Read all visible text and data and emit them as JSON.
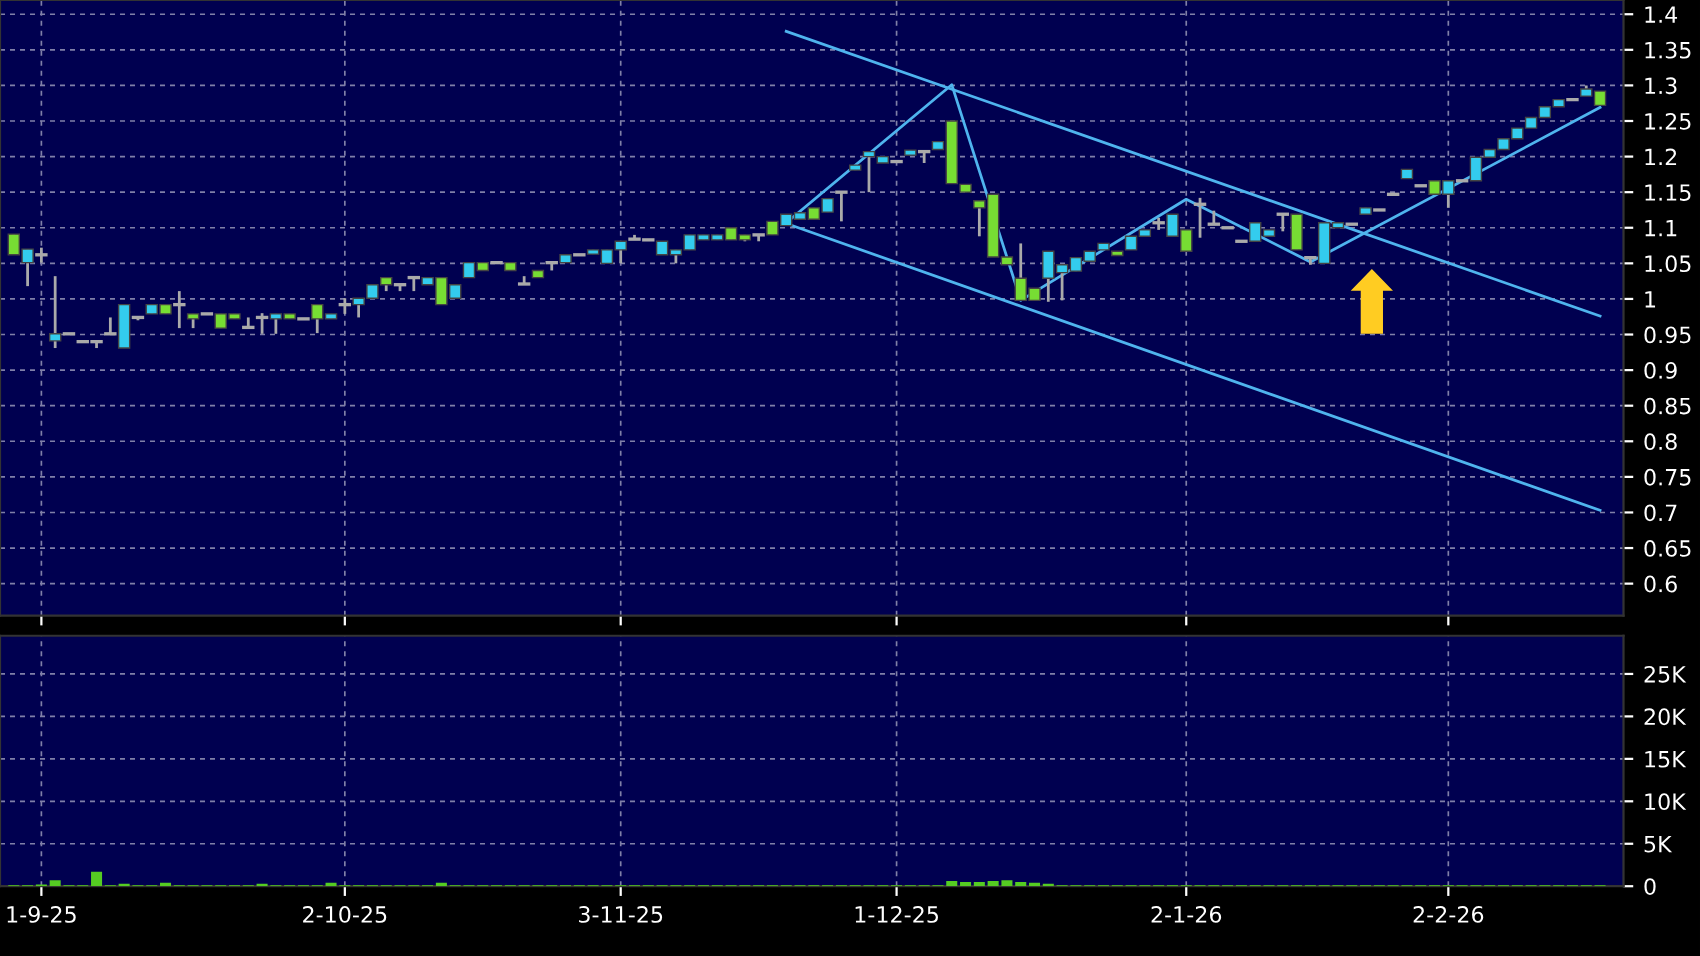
{
  "chart_data": [
    {
      "type": "candlestick",
      "categories": [
        null,
        null,
        null,
        null,
        null,
        null,
        null,
        null,
        null,
        null,
        null,
        null,
        null,
        null,
        null,
        null,
        null,
        null,
        null,
        null,
        null,
        null,
        null,
        null,
        null,
        null,
        null,
        null,
        null,
        null,
        null,
        null,
        null,
        null,
        null,
        null,
        null,
        null,
        null,
        null,
        null,
        null,
        null,
        null,
        null,
        null,
        null,
        null,
        null,
        null,
        null,
        null,
        null,
        null,
        null,
        null,
        null,
        null,
        null,
        null,
        null,
        null,
        null,
        null,
        null,
        null,
        null,
        null,
        null,
        null,
        null,
        null,
        null,
        null,
        null,
        null,
        null,
        null,
        null,
        null,
        null,
        null,
        null,
        null,
        null,
        null,
        null,
        null,
        null,
        null,
        null,
        null,
        null,
        null,
        null,
        null,
        null,
        null,
        null,
        null,
        null,
        null,
        null,
        null,
        null,
        null,
        null,
        null,
        null,
        null,
        null,
        null,
        null,
        null,
        null,
        null
      ],
      "ohlc": [
        [
          1.091,
          1.091,
          1.062,
          1.062
        ],
        [
          1.051,
          1.07,
          1.018,
          1.07
        ],
        [
          1.062,
          1.072,
          1.051,
          1.062
        ],
        [
          0.941,
          1.032,
          0.931,
          0.951
        ],
        [
          0.951,
          0.951,
          0.951,
          0.951
        ],
        [
          0.94,
          0.94,
          0.94,
          0.94
        ],
        [
          0.94,
          0.94,
          0.931,
          0.94
        ],
        [
          0.951,
          0.974,
          0.951,
          0.951
        ],
        [
          0.931,
          0.992,
          0.931,
          0.992
        ],
        [
          0.974,
          0.976,
          0.97,
          0.974
        ],
        [
          0.979,
          0.992,
          0.979,
          0.992
        ],
        [
          0.992,
          0.992,
          0.979,
          0.979
        ],
        [
          0.992,
          1.011,
          0.959,
          0.992
        ],
        [
          0.979,
          0.979,
          0.959,
          0.972
        ],
        [
          0.979,
          0.979,
          0.979,
          0.979
        ],
        [
          0.979,
          0.979,
          0.959,
          0.959
        ],
        [
          0.979,
          0.979,
          0.972,
          0.972
        ],
        [
          0.96,
          0.974,
          0.96,
          0.96
        ],
        [
          0.974,
          0.98,
          0.951,
          0.974
        ],
        [
          0.972,
          0.979,
          0.951,
          0.979
        ],
        [
          0.979,
          0.979,
          0.972,
          0.972
        ],
        [
          0.972,
          0.972,
          0.972,
          0.972
        ],
        [
          0.992,
          0.992,
          0.952,
          0.972
        ],
        [
          0.972,
          0.979,
          0.972,
          0.979
        ],
        [
          0.992,
          1.001,
          0.979,
          0.992
        ],
        [
          0.992,
          1.001,
          0.974,
          1.001
        ],
        [
          1.001,
          1.02,
          1.001,
          1.02
        ],
        [
          1.03,
          1.03,
          1.011,
          1.02
        ],
        [
          1.02,
          1.02,
          1.011,
          1.02
        ],
        [
          1.03,
          1.03,
          1.011,
          1.03
        ],
        [
          1.02,
          1.03,
          1.02,
          1.03
        ],
        [
          1.03,
          1.03,
          0.992,
          0.992
        ],
        [
          1.001,
          1.02,
          1.001,
          1.02
        ],
        [
          1.03,
          1.051,
          1.03,
          1.051
        ],
        [
          1.051,
          1.051,
          1.04,
          1.04
        ],
        [
          1.051,
          1.051,
          1.051,
          1.051
        ],
        [
          1.051,
          1.051,
          1.04,
          1.04
        ],
        [
          1.021,
          1.032,
          1.021,
          1.021
        ],
        [
          1.04,
          1.04,
          1.03,
          1.03
        ],
        [
          1.051,
          1.051,
          1.04,
          1.051
        ],
        [
          1.051,
          1.062,
          1.051,
          1.062
        ],
        [
          1.062,
          1.062,
          1.062,
          1.062
        ],
        [
          1.063,
          1.069,
          1.063,
          1.069
        ],
        [
          1.05,
          1.069,
          1.05,
          1.069
        ],
        [
          1.069,
          1.081,
          1.05,
          1.081
        ],
        [
          1.084,
          1.09,
          1.084,
          1.084
        ],
        [
          1.083,
          1.083,
          1.083,
          1.083
        ],
        [
          1.062,
          1.081,
          1.062,
          1.081
        ],
        [
          1.062,
          1.069,
          1.05,
          1.069
        ],
        [
          1.069,
          1.09,
          1.069,
          1.09
        ],
        [
          1.083,
          1.09,
          1.083,
          1.09
        ],
        [
          1.083,
          1.09,
          1.083,
          1.09
        ],
        [
          1.1,
          1.1,
          1.083,
          1.083
        ],
        [
          1.09,
          1.09,
          1.081,
          1.083
        ],
        [
          1.09,
          1.09,
          1.081,
          1.09
        ],
        [
          1.109,
          1.109,
          1.09,
          1.09
        ],
        [
          1.103,
          1.119,
          1.103,
          1.119
        ],
        [
          1.112,
          1.121,
          1.112,
          1.121
        ],
        [
          1.128,
          1.128,
          1.112,
          1.112
        ],
        [
          1.122,
          1.141,
          1.122,
          1.141
        ],
        [
          1.15,
          1.15,
          1.109,
          1.15
        ],
        [
          1.181,
          1.188,
          1.181,
          1.188
        ],
        [
          1.2,
          1.207,
          1.15,
          1.207
        ],
        [
          1.191,
          1.2,
          1.191,
          1.2
        ],
        [
          1.193,
          1.193,
          1.193,
          1.193
        ],
        [
          1.202,
          1.209,
          1.202,
          1.209
        ],
        [
          1.207,
          1.207,
          1.191,
          1.207
        ],
        [
          1.21,
          1.221,
          1.21,
          1.221
        ],
        [
          1.25,
          1.25,
          1.162,
          1.162
        ],
        [
          1.161,
          1.161,
          1.15,
          1.15
        ],
        [
          1.138,
          1.138,
          1.088,
          1.128
        ],
        [
          1.147,
          1.147,
          1.059,
          1.059
        ],
        [
          1.059,
          1.059,
          1.048,
          1.048
        ],
        [
          1.029,
          1.078,
          0.998,
          0.998
        ],
        [
          1.015,
          1.015,
          0.998,
          0.998
        ],
        [
          1.029,
          1.067,
          0.996,
          1.067
        ],
        [
          1.037,
          1.048,
          0.998,
          1.048
        ],
        [
          1.039,
          1.058,
          1.039,
          1.058
        ],
        [
          1.053,
          1.067,
          1.053,
          1.067
        ],
        [
          1.069,
          1.078,
          1.069,
          1.078
        ],
        [
          1.067,
          1.067,
          1.061,
          1.061
        ],
        [
          1.069,
          1.088,
          1.069,
          1.088
        ],
        [
          1.088,
          1.097,
          1.088,
          1.097
        ],
        [
          1.107,
          1.114,
          1.097,
          1.107
        ],
        [
          1.088,
          1.119,
          1.088,
          1.119
        ],
        [
          1.097,
          1.097,
          1.067,
          1.067
        ],
        [
          1.133,
          1.142,
          1.086,
          1.133
        ],
        [
          1.105,
          1.124,
          1.105,
          1.105
        ],
        [
          1.1,
          1.1,
          1.1,
          1.1
        ],
        [
          1.081,
          1.081,
          1.081,
          1.081
        ],
        [
          1.081,
          1.107,
          1.081,
          1.107
        ],
        [
          1.088,
          1.097,
          1.088,
          1.097
        ],
        [
          1.119,
          1.119,
          1.095,
          1.119
        ],
        [
          1.119,
          1.119,
          1.069,
          1.069
        ],
        [
          1.058,
          1.058,
          1.048,
          1.058
        ],
        [
          1.05,
          1.107,
          1.05,
          1.107
        ],
        [
          1.1,
          1.107,
          1.1,
          1.107
        ],
        [
          1.105,
          1.105,
          1.105,
          1.105
        ],
        [
          1.119,
          1.128,
          1.119,
          1.128
        ],
        [
          1.125,
          1.125,
          1.125,
          1.125
        ],
        [
          1.147,
          1.147,
          1.147,
          1.147
        ],
        [
          1.169,
          1.182,
          1.169,
          1.182
        ],
        [
          1.159,
          1.159,
          1.159,
          1.159
        ],
        [
          1.166,
          1.166,
          1.147,
          1.147
        ],
        [
          1.147,
          1.166,
          1.128,
          1.166
        ],
        [
          1.166,
          1.166,
          1.166,
          1.166
        ],
        [
          1.166,
          1.199,
          1.166,
          1.199
        ],
        [
          1.199,
          1.21,
          1.199,
          1.21
        ],
        [
          1.21,
          1.225,
          1.21,
          1.225
        ],
        [
          1.225,
          1.24,
          1.225,
          1.24
        ],
        [
          1.24,
          1.255,
          1.24,
          1.255
        ],
        [
          1.255,
          1.27,
          1.255,
          1.27
        ],
        [
          1.27,
          1.28,
          1.27,
          1.28
        ],
        [
          1.28,
          1.28,
          1.28,
          1.28
        ],
        [
          1.285,
          1.3,
          1.285,
          1.295
        ],
        [
          1.292,
          1.292,
          1.272,
          1.272
        ]
      ],
      "colors": [
        "#77dd33",
        "#33ccee",
        "#aaaaaa",
        "#33ccee",
        "#aaaaaa",
        "#aaaaaa",
        "#aaaaaa",
        "#aaaaaa",
        "#33ccee",
        "#aaaaaa",
        "#33ccee",
        "#77dd33",
        "#aaaaaa",
        "#77dd33",
        "#aaaaaa",
        "#77dd33",
        "#77dd33",
        "#aaaaaa",
        "#aaaaaa",
        "#33ccee",
        "#77dd33",
        "#aaaaaa",
        "#77dd33",
        "#33ccee",
        "#aaaaaa",
        "#33ccee",
        "#33ccee",
        "#77dd33",
        "#aaaaaa",
        "#aaaaaa",
        "#33ccee",
        "#77dd33",
        "#33ccee",
        "#33ccee",
        "#77dd33",
        "#aaaaaa",
        "#77dd33",
        "#aaaaaa",
        "#77dd33",
        "#aaaaaa",
        "#33ccee",
        "#aaaaaa",
        "#33ccee",
        "#33ccee",
        "#33ccee",
        "#aaaaaa",
        "#aaaaaa",
        "#33ccee",
        "#33ccee",
        "#33ccee",
        "#33ccee",
        "#33ccee",
        "#77dd33",
        "#77dd33",
        "#aaaaaa",
        "#77dd33",
        "#33ccee",
        "#33ccee",
        "#77dd33",
        "#33ccee",
        "#aaaaaa",
        "#33ccee",
        "#33ccee",
        "#33ccee",
        "#aaaaaa",
        "#33ccee",
        "#aaaaaa",
        "#33ccee",
        "#77dd33",
        "#77dd33",
        "#77dd33",
        "#77dd33",
        "#77dd33",
        "#77dd33",
        "#77dd33",
        "#33ccee",
        "#33ccee",
        "#33ccee",
        "#33ccee",
        "#33ccee",
        "#77dd33",
        "#33ccee",
        "#33ccee",
        "#aaaaaa",
        "#33ccee",
        "#77dd33",
        "#aaaaaa",
        "#aaaaaa",
        "#aaaaaa",
        "#aaaaaa",
        "#33ccee",
        "#33ccee",
        "#aaaaaa",
        "#77dd33",
        "#aaaaaa",
        "#33ccee",
        "#33ccee",
        "#aaaaaa",
        "#33ccee",
        "#aaaaaa",
        "#aaaaaa",
        "#33ccee",
        "#aaaaaa",
        "#77dd33",
        "#33ccee",
        "#aaaaaa",
        "#33ccee",
        "#33ccee",
        "#33ccee",
        "#33ccee",
        "#33ccee",
        "#33ccee",
        "#33ccee",
        "#aaaaaa",
        "#33ccee",
        "#77dd33"
      ],
      "series": [
        {
          "type": "line",
          "color": "#4fb4ee",
          "values": [
            null,
            null,
            null,
            null,
            null,
            null,
            null,
            null,
            null,
            null,
            null,
            null,
            null,
            null,
            null,
            null,
            null,
            null,
            null,
            null,
            null,
            null,
            null,
            null,
            null,
            null,
            null,
            null,
            null,
            null,
            null,
            null,
            null,
            null,
            null,
            null,
            null,
            null,
            null,
            null,
            null,
            null,
            null,
            null,
            null,
            null,
            null,
            null,
            null,
            null,
            null,
            null,
            null,
            null,
            null,
            null,
            1.376,
            null,
            null,
            null,
            null,
            null,
            null,
            null,
            null,
            null,
            null,
            null,
            null,
            null,
            null,
            null,
            null,
            null,
            null,
            null,
            null,
            null,
            null,
            null,
            null,
            null,
            null,
            null,
            null,
            null,
            null,
            null,
            null,
            null,
            null,
            null,
            null,
            null,
            null,
            null,
            null,
            null,
            null,
            null,
            null,
            null,
            null,
            null,
            null,
            null,
            null,
            null,
            null,
            null,
            null,
            null,
            null,
            null,
            null,
            0.976
          ]
        },
        {
          "type": "line",
          "color": "#4fb4ee",
          "values": [
            null,
            null,
            null,
            null,
            null,
            null,
            null,
            null,
            null,
            null,
            null,
            null,
            null,
            null,
            null,
            null,
            null,
            null,
            null,
            null,
            null,
            null,
            null,
            null,
            null,
            null,
            null,
            null,
            null,
            null,
            null,
            null,
            null,
            null,
            null,
            null,
            null,
            null,
            null,
            null,
            null,
            null,
            null,
            null,
            null,
            null,
            null,
            null,
            null,
            null,
            null,
            null,
            null,
            null,
            null,
            null,
            1.106,
            null,
            null,
            null,
            null,
            null,
            null,
            null,
            null,
            null,
            null,
            null,
            null,
            null,
            null,
            null,
            null,
            null,
            null,
            null,
            null,
            null,
            null,
            null,
            null,
            null,
            null,
            null,
            null,
            null,
            null,
            null,
            null,
            null,
            null,
            null,
            null,
            null,
            null,
            null,
            null,
            null,
            null,
            null,
            null,
            null,
            null,
            null,
            null,
            null,
            null,
            null,
            null,
            null,
            null,
            null,
            null,
            null,
            null,
            0.703
          ]
        },
        {
          "type": "line",
          "color": "#4fb4ee",
          "values": [
            null,
            null,
            null,
            null,
            null,
            null,
            null,
            null,
            null,
            null,
            null,
            null,
            null,
            null,
            null,
            null,
            null,
            null,
            null,
            null,
            null,
            null,
            null,
            null,
            null,
            null,
            null,
            null,
            null,
            null,
            null,
            null,
            null,
            null,
            null,
            null,
            null,
            null,
            null,
            null,
            null,
            null,
            null,
            null,
            null,
            null,
            null,
            null,
            null,
            null,
            null,
            null,
            null,
            null,
            null,
            null,
            1.107,
            null,
            null,
            null,
            null,
            null,
            null,
            null,
            null,
            null,
            null,
            null,
            1.301,
            null,
            null,
            null,
            null,
            0.998,
            null,
            null,
            null,
            null,
            null,
            null,
            null,
            null,
            null,
            null,
            null,
            1.14,
            null,
            null,
            null,
            null,
            null,
            null,
            null,
            null,
            1.052,
            null,
            null,
            null,
            null,
            null,
            null,
            null,
            null,
            null,
            null,
            null,
            null,
            null,
            null,
            null,
            null,
            null,
            null,
            null,
            null,
            1.269
          ]
        }
      ],
      "ylim": [
        0.555,
        1.42
      ],
      "yticks": [
        0.6,
        0.65,
        0.7,
        0.75,
        0.8,
        0.85,
        0.9,
        0.95,
        1,
        1.05,
        1.1,
        1.15,
        1.2,
        1.25,
        1.3,
        1.35,
        1.4
      ],
      "grid": true
    },
    {
      "type": "bar",
      "color": "#55cc22",
      "categories": [
        null,
        null,
        "1-9-25",
        null,
        null,
        null,
        null,
        null,
        null,
        null,
        null,
        null,
        null,
        null,
        null,
        null,
        null,
        null,
        null,
        null,
        null,
        null,
        null,
        null,
        "2-10-25",
        null,
        null,
        null,
        null,
        null,
        null,
        null,
        null,
        null,
        null,
        null,
        null,
        null,
        null,
        null,
        null,
        null,
        null,
        null,
        "3-11-25",
        null,
        null,
        null,
        null,
        null,
        null,
        null,
        null,
        null,
        null,
        null,
        null,
        null,
        null,
        null,
        null,
        null,
        null,
        null,
        "1-12-25",
        null,
        null,
        null,
        null,
        null,
        null,
        null,
        null,
        null,
        null,
        null,
        null,
        null,
        null,
        null,
        null,
        null,
        null,
        null,
        null,
        "2-1-26",
        null,
        null,
        null,
        null,
        null,
        null,
        null,
        null,
        null,
        null,
        null,
        null,
        null,
        null,
        null,
        null,
        null,
        null,
        "2-2-26",
        null,
        null,
        null,
        null,
        null,
        null,
        null,
        null,
        null,
        null,
        null
      ],
      "values": [
        100,
        100,
        200,
        700,
        100,
        100,
        1700,
        100,
        300,
        100,
        100,
        400,
        100,
        100,
        100,
        100,
        100,
        100,
        300,
        100,
        100,
        100,
        100,
        400,
        100,
        100,
        100,
        100,
        100,
        100,
        100,
        400,
        100,
        100,
        100,
        100,
        100,
        100,
        100,
        100,
        100,
        100,
        100,
        100,
        100,
        100,
        100,
        100,
        100,
        100,
        100,
        100,
        100,
        100,
        100,
        100,
        100,
        100,
        100,
        100,
        100,
        100,
        100,
        100,
        100,
        100,
        100,
        100,
        600,
        500,
        500,
        600,
        700,
        500,
        400,
        300,
        100,
        100,
        100,
        100,
        100,
        100,
        100,
        100,
        100,
        100,
        100,
        100,
        100,
        100,
        100,
        100,
        100,
        100,
        100,
        100,
        100,
        100,
        100,
        100,
        100,
        100,
        100,
        100,
        100,
        100,
        100,
        100,
        100,
        100,
        100,
        100,
        100,
        100,
        100,
        100
      ],
      "ylim": [
        0,
        29500
      ],
      "yticks": [
        {
          "value": 0,
          "label": "0"
        },
        {
          "value": 5000,
          "label": "5K"
        },
        {
          "value": 10000,
          "label": "10K"
        },
        {
          "value": 15000,
          "label": "15K"
        },
        {
          "value": 20000,
          "label": "20K"
        },
        {
          "value": 25000,
          "label": "25K"
        }
      ],
      "grid": true
    }
  ]
}
